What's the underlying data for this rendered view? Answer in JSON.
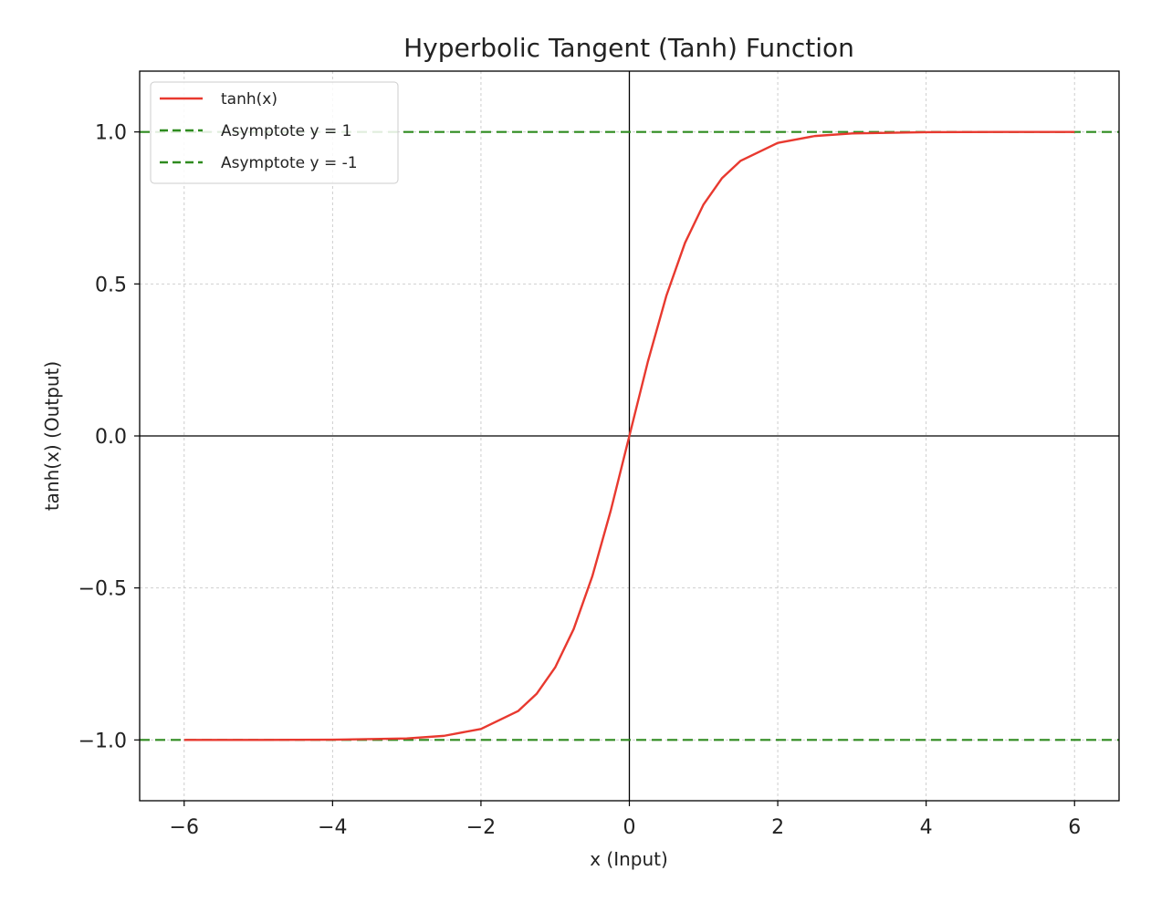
{
  "chart_data": {
    "type": "line",
    "title": "Hyperbolic Tangent (Tanh) Function",
    "xlabel": "x (Input)",
    "ylabel": "tanh(x) (Output)",
    "xlim": [
      -6.6,
      6.6
    ],
    "ylim": [
      -1.2,
      1.2
    ],
    "xticks": [
      -6,
      -4,
      -2,
      0,
      2,
      4,
      6
    ],
    "xtick_labels": [
      "−6",
      "−4",
      "−2",
      "0",
      "2",
      "4",
      "6"
    ],
    "yticks": [
      -1.0,
      -0.5,
      0.0,
      0.5,
      1.0
    ],
    "ytick_labels": [
      "−1.0",
      "−0.5",
      "0.0",
      "0.5",
      "1.0"
    ],
    "grid": true,
    "legend_position": "top-left",
    "series": [
      {
        "name": "tanh(x)",
        "kind": "line",
        "style": "solid",
        "color": "#e8392f",
        "x": [
          -6,
          -5,
          -4,
          -3,
          -2.5,
          -2,
          -1.5,
          -1.25,
          -1,
          -0.75,
          -0.5,
          -0.25,
          0,
          0.25,
          0.5,
          0.75,
          1,
          1.25,
          1.5,
          2,
          2.5,
          3,
          4,
          5,
          6
        ],
        "y": [
          -1.0,
          -0.9999,
          -0.9993,
          -0.9951,
          -0.9866,
          -0.964,
          -0.9051,
          -0.8483,
          -0.7616,
          -0.6351,
          -0.4621,
          -0.2449,
          0.0,
          0.2449,
          0.4621,
          0.6351,
          0.7616,
          0.8483,
          0.9051,
          0.964,
          0.9866,
          0.9951,
          0.9993,
          0.9999,
          1.0
        ]
      },
      {
        "name": "Asymptote y = 1",
        "kind": "hline",
        "style": "dashed",
        "color": "#2e8b1f",
        "y": 1
      },
      {
        "name": "Asymptote y = -1",
        "kind": "hline",
        "style": "dashed",
        "color": "#2e8b1f",
        "y": -1
      }
    ],
    "reference_lines": [
      {
        "kind": "hline",
        "y": 0,
        "color": "#000000"
      },
      {
        "kind": "vline",
        "x": 0,
        "color": "#000000"
      }
    ]
  }
}
